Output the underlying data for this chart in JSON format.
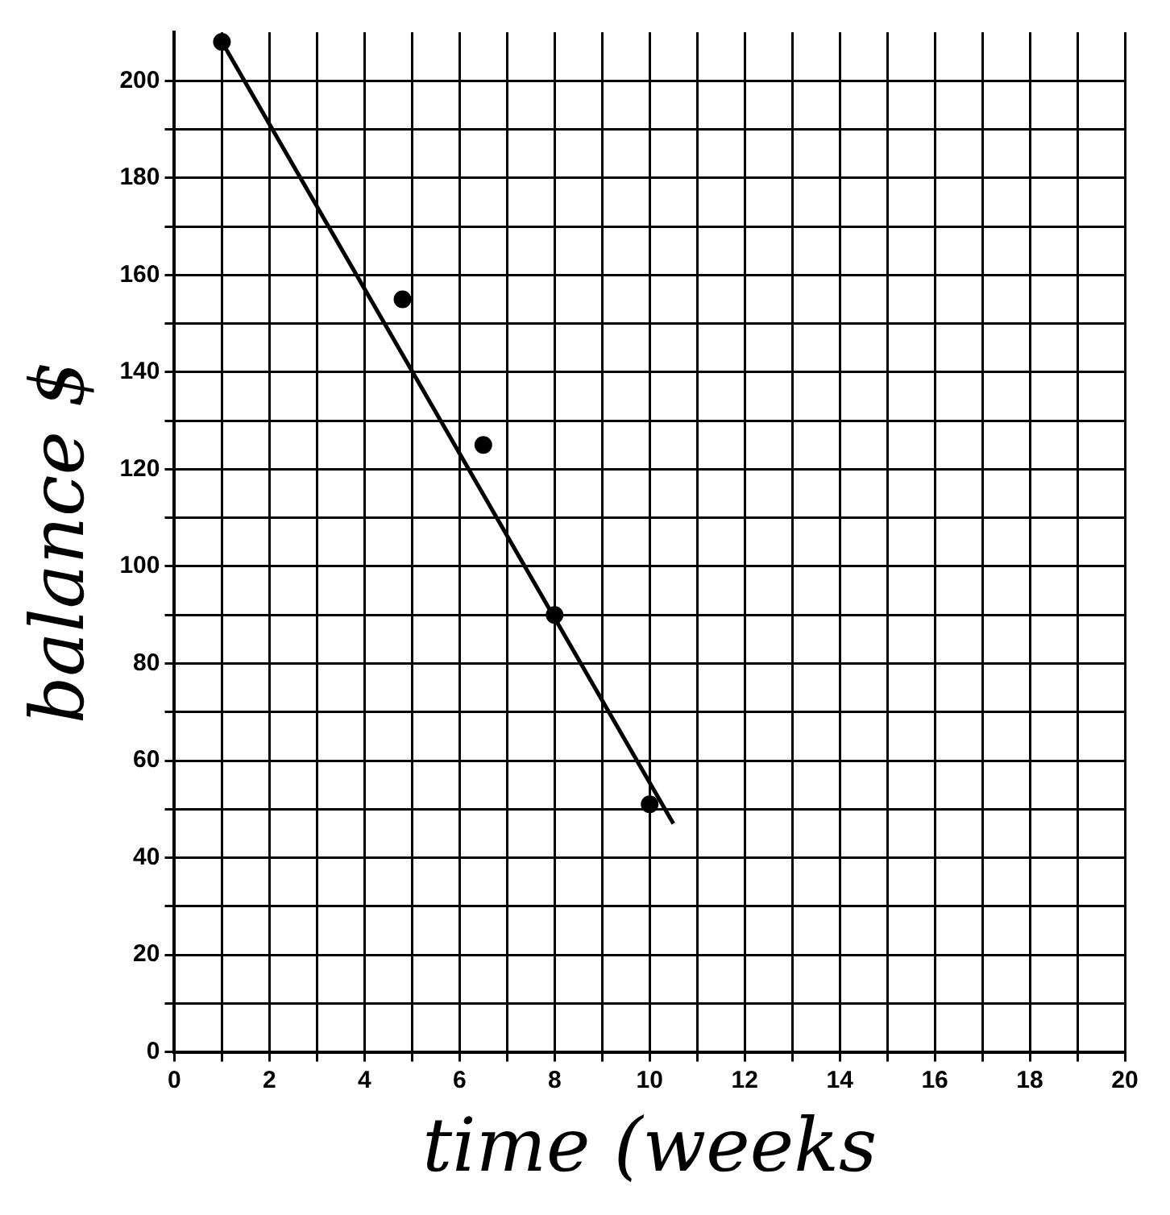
{
  "chart_data": {
    "type": "scatter",
    "xlabel": "time (weeks",
    "ylabel": "balance $",
    "xlim": [
      0,
      20
    ],
    "ylim": [
      0,
      210
    ],
    "xticks": [
      0,
      {
        "value": 1,
        "label": null
      },
      2,
      {
        "value": 3,
        "label": null
      },
      4,
      {
        "value": 5,
        "label": null
      },
      6,
      {
        "value": 7,
        "label": null
      },
      8,
      {
        "value": 9,
        "label": null
      },
      10,
      {
        "value": 11,
        "label": null
      },
      12,
      {
        "value": 13,
        "label": null
      },
      14,
      {
        "value": 15,
        "label": null
      },
      16,
      {
        "value": 17,
        "label": null
      },
      18,
      {
        "value": 19,
        "label": null
      },
      20
    ],
    "yticks": [
      0,
      {
        "value": 10,
        "label": null
      },
      20,
      {
        "value": 30,
        "label": null
      },
      40,
      {
        "value": 50,
        "label": null
      },
      60,
      {
        "value": 70,
        "label": null
      },
      80,
      {
        "value": 90,
        "label": null
      },
      100,
      {
        "value": 110,
        "label": null
      },
      120,
      {
        "value": 130,
        "label": null
      },
      140,
      {
        "value": 150,
        "label": null
      },
      160,
      {
        "value": 170,
        "label": null
      },
      180,
      {
        "value": 190,
        "label": null
      },
      200
    ],
    "grid": true,
    "legend": false,
    "series": [
      {
        "type": "scatter",
        "marker": "circle",
        "color": "#000000",
        "x": [
          1,
          4.8,
          6.5,
          8,
          10
        ],
        "values": [
          208,
          155,
          125,
          90,
          51
        ]
      },
      {
        "type": "line",
        "color": "#000000",
        "x": [
          1,
          10.5
        ],
        "values": [
          208,
          47
        ]
      }
    ]
  }
}
